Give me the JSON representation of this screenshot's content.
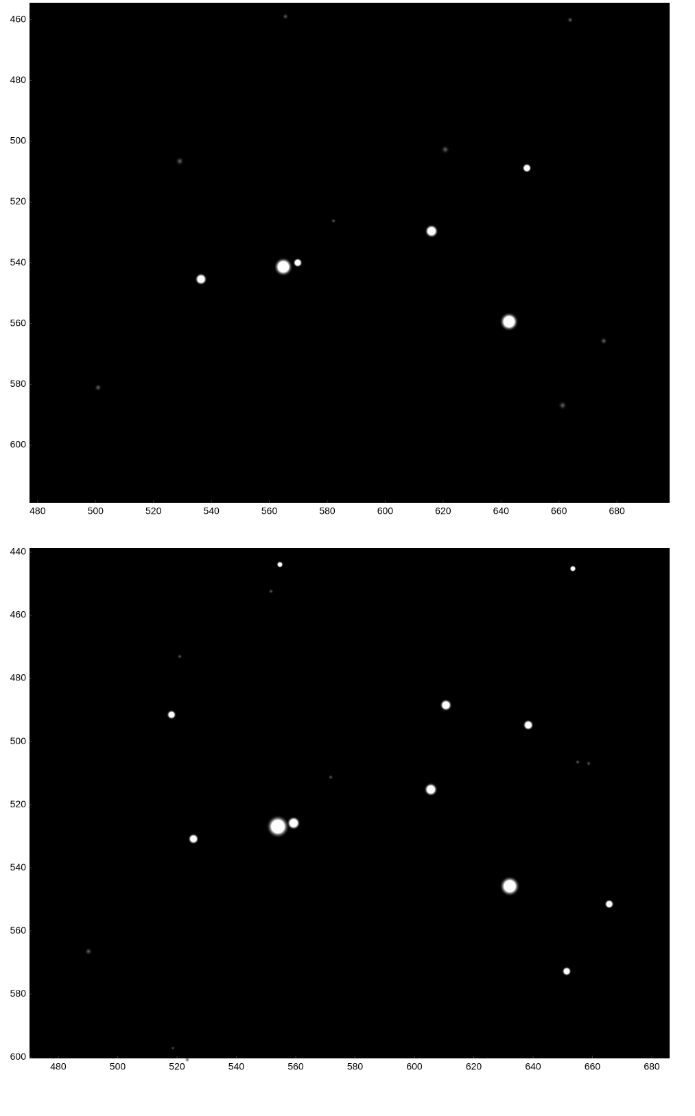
{
  "chart_data": [
    {
      "type": "image",
      "xlim": [
        477.2,
        698.2
      ],
      "ylim": [
        454.4,
        619.0
      ],
      "xticks": [
        480,
        500,
        520,
        540,
        560,
        580,
        600,
        620,
        640,
        660,
        680
      ],
      "yticks": [
        460,
        480,
        500,
        520,
        540,
        560,
        580,
        600
      ]
    },
    {
      "type": "image",
      "xlim": [
        470.3,
        686.0
      ],
      "ylim": [
        438.7,
        600.4
      ],
      "xticks": [
        480,
        500,
        520,
        540,
        560,
        580,
        600,
        620,
        640,
        660,
        680
      ],
      "yticks": [
        440,
        460,
        480,
        500,
        520,
        540,
        560,
        580,
        600
      ]
    }
  ]
}
